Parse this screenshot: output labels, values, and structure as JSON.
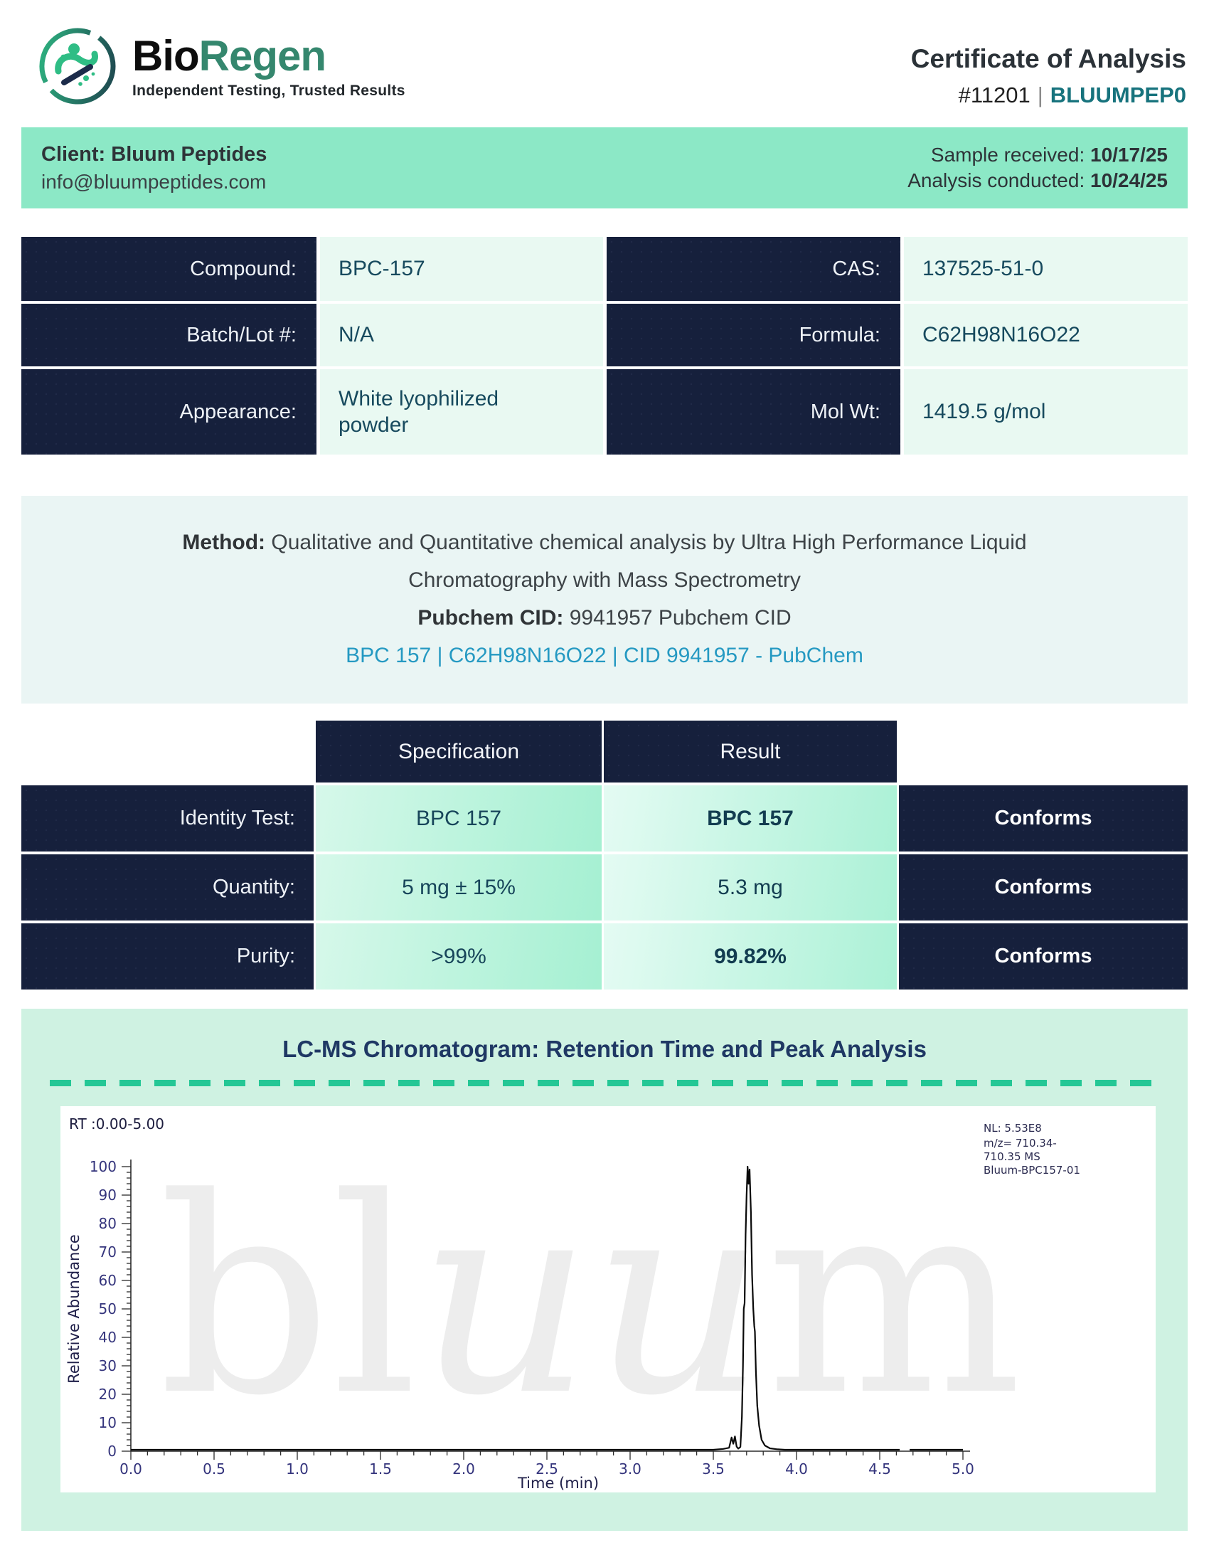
{
  "logo": {
    "brand_bio": "Bio",
    "brand_regen": "Regen",
    "tagline": "Independent Testing, Trusted Results"
  },
  "header": {
    "title": "Certificate of Analysis",
    "report_number": "#11201",
    "separator": "|",
    "report_code": "BLUUMPEP0"
  },
  "client_bar": {
    "client": "Client: Bluum Peptides",
    "email": "info@bluumpeptides.com",
    "sample_received_label": "Sample received: ",
    "sample_received_date": "10/17/25",
    "analysis_conducted_label": "Analysis conducted: ",
    "analysis_conducted_date": "10/24/25"
  },
  "compound_table": {
    "left": [
      {
        "label": "Compound:",
        "value": "BPC-157"
      },
      {
        "label": "Batch/Lot #:",
        "value": "N/A"
      },
      {
        "label": "Appearance:",
        "value": "White lyophilized powder"
      }
    ],
    "right": [
      {
        "label": "CAS:",
        "value": "137525-51-0"
      },
      {
        "label": "Formula:",
        "value": "C62H98N16O22"
      },
      {
        "label": "Mol Wt:",
        "value": "1419.5 g/mol"
      }
    ]
  },
  "method": {
    "label": "Method:",
    "line1": " Qualitative and Quantitative chemical analysis by Ultra High Performance Liquid",
    "line2": "Chromatography with Mass Spectrometry",
    "cid_label": "Pubchem CID:",
    "cid_value": " 9941957 Pubchem CID",
    "link": "BPC 157 | C62H98N16O22 | CID 9941957 - PubChem"
  },
  "spec_table": {
    "headers": [
      "Specification",
      "Result"
    ],
    "rows": [
      {
        "label": "Identity Test:",
        "spec": "BPC 157",
        "result": "BPC 157",
        "status": "Conforms"
      },
      {
        "label": "Quantity:",
        "spec": "5 mg ± 15%",
        "result": "5.3 mg",
        "status": "Conforms"
      },
      {
        "label": "Purity:",
        "spec": ">99%",
        "result": "99.82%",
        "status": "Conforms"
      }
    ]
  },
  "chart_data": {
    "type": "line",
    "title": "LC-MS Chromatogram: Retention Time and Peak Analysis",
    "rt_note": "RT :0.00-5.00",
    "xlabel": "Time (min)",
    "ylabel": "Relative Abundance",
    "xlim": [
      0,
      5
    ],
    "ylim": [
      0,
      100
    ],
    "x_major_step": 0.5,
    "x_minor_step": 0.1,
    "y_major_step": 10,
    "y_minor_step": 2,
    "grid": false,
    "legend_position": "none",
    "peak_retention_time_min": 3.72,
    "peak_max_abundance": 100,
    "annotation": [
      "NL: 5.53E8",
      "m/z= 710.34-",
      "710.35 MS",
      "Bluum-BPC157-01"
    ],
    "watermark_parts": [
      "bl",
      "uu",
      "m"
    ],
    "series": [
      {
        "name": "Bluum-BPC157-01",
        "segments": [
          [
            [
              0,
              0.5
            ],
            [
              3.5,
              0.5
            ],
            [
              3.56,
              0.8
            ],
            [
              3.595,
              1.2
            ],
            [
              3.61,
              4.8
            ],
            [
              3.62,
              2.6
            ],
            [
              3.63,
              5.2
            ],
            [
              3.64,
              1.6
            ],
            [
              3.65,
              0.9
            ],
            [
              3.663,
              1.5
            ],
            [
              3.672,
              12
            ],
            [
              3.678,
              30
            ],
            [
              3.683,
              50
            ],
            [
              3.688,
              52
            ],
            [
              3.694,
              76
            ],
            [
              3.7,
              90
            ],
            [
              3.706,
              100
            ],
            [
              3.712,
              94
            ],
            [
              3.718,
              99
            ],
            [
              3.726,
              84
            ],
            [
              3.733,
              62
            ],
            [
              3.74,
              50
            ],
            [
              3.746,
              44
            ],
            [
              3.75,
              42
            ],
            [
              3.756,
              28
            ],
            [
              3.764,
              16
            ],
            [
              3.775,
              9
            ],
            [
              3.79,
              4
            ],
            [
              3.81,
              2
            ],
            [
              3.84,
              1
            ],
            [
              3.88,
              0.7
            ],
            [
              3.93,
              0.5
            ],
            [
              4.62,
              0.5
            ]
          ],
          [
            [
              4.68,
              0.5
            ],
            [
              5.0,
              0.5
            ]
          ]
        ]
      }
    ]
  },
  "theme": {
    "mint": "#8ce8c6",
    "mint_light": "#cff2e2",
    "navy": "#16203c",
    "teal": "#17737d",
    "green": "#35876e",
    "link_blue": "#2599c2",
    "dash_green": "#24c795",
    "value_cell": "#e9f9f2",
    "method_bg": "#eaf5f4",
    "peak_line": "#0a0a0a"
  }
}
